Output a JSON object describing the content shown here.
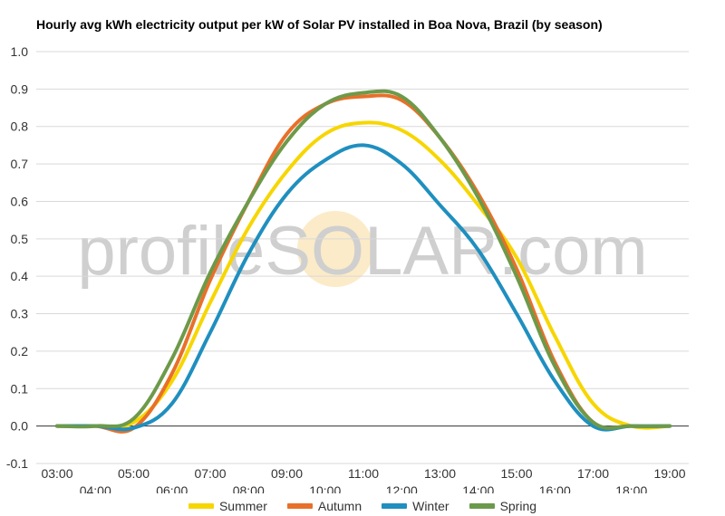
{
  "chart_data": {
    "type": "line",
    "title": "Hourly avg kWh electricity output per kW of Solar PV installed in Boa Nova, Brazil (by season)",
    "xlabel": "",
    "ylabel": "",
    "ylim": [
      -0.1,
      1.0
    ],
    "yticks": [
      "-0.1",
      "0.0",
      "0.1",
      "0.2",
      "0.3",
      "0.4",
      "0.5",
      "0.6",
      "0.7",
      "0.8",
      "0.9",
      "1.0"
    ],
    "x": [
      "03:00",
      "04:00",
      "05:00",
      "06:00",
      "07:00",
      "08:00",
      "09:00",
      "10:00",
      "11:00",
      "12:00",
      "13:00",
      "14:00",
      "15:00",
      "16:00",
      "17:00",
      "18:00",
      "19:00"
    ],
    "grid": true,
    "legend_position": "bottom",
    "watermark": "profileSOLAR.com",
    "series": [
      {
        "name": "Summer",
        "color": "#f7d600",
        "values": [
          0.0,
          0.0,
          0.01,
          0.12,
          0.33,
          0.53,
          0.68,
          0.78,
          0.81,
          0.79,
          0.71,
          0.59,
          0.45,
          0.24,
          0.06,
          0.0,
          0.0
        ]
      },
      {
        "name": "Autumn",
        "color": "#e8702a",
        "values": [
          0.0,
          0.0,
          -0.005,
          0.14,
          0.39,
          0.6,
          0.78,
          0.86,
          0.88,
          0.87,
          0.77,
          0.62,
          0.42,
          0.17,
          0.01,
          0.0,
          0.0
        ]
      },
      {
        "name": "Winter",
        "color": "#1f8fbf",
        "values": [
          0.0,
          0.0,
          -0.005,
          0.06,
          0.25,
          0.46,
          0.62,
          0.71,
          0.75,
          0.7,
          0.59,
          0.47,
          0.3,
          0.12,
          0.0,
          0.0,
          0.0
        ]
      },
      {
        "name": "Spring",
        "color": "#6d9a4a",
        "values": [
          0.0,
          0.0,
          0.02,
          0.18,
          0.41,
          0.6,
          0.76,
          0.86,
          0.89,
          0.88,
          0.77,
          0.61,
          0.4,
          0.16,
          0.01,
          0.0,
          0.0
        ]
      }
    ]
  }
}
